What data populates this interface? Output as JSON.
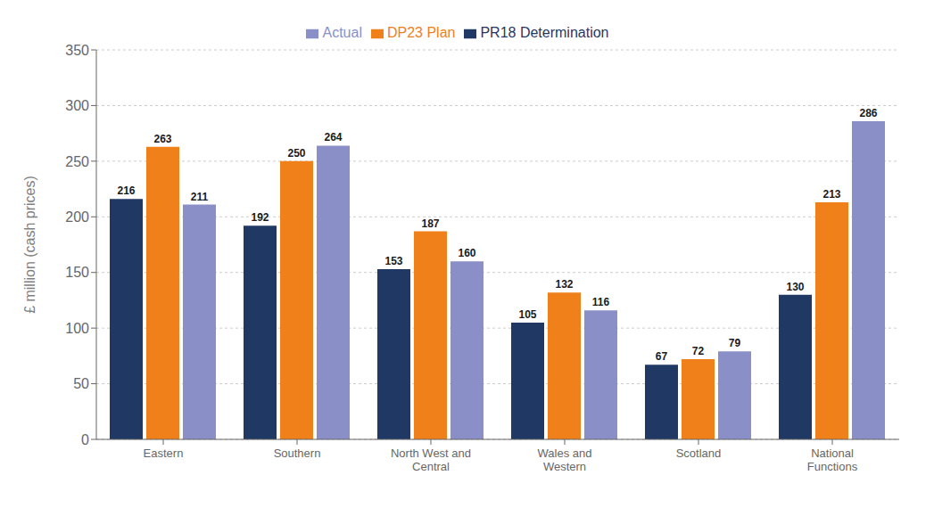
{
  "chart_data": {
    "type": "bar",
    "categories": [
      "Eastern",
      "Southern",
      "North West and\nCentral",
      "Wales and\nWestern",
      "Scotland",
      "National\nFunctions"
    ],
    "series": [
      {
        "name": "PR18 Determination",
        "color": "#1f3864",
        "values": [
          216,
          192,
          153,
          105,
          67,
          130
        ]
      },
      {
        "name": "DP23 Plan",
        "color": "#f0801a",
        "values": [
          263,
          250,
          187,
          132,
          72,
          213
        ]
      },
      {
        "name": "Actual",
        "color": "#8b8fc8",
        "values": [
          211,
          264,
          160,
          116,
          79,
          286
        ]
      }
    ],
    "ylabel": "£ million (cash prices)",
    "ylim": [
      0,
      350
    ],
    "yticks": [
      0,
      50,
      100,
      150,
      200,
      250,
      300,
      350
    ],
    "grid": true,
    "legend": "top",
    "data_labels": true
  }
}
